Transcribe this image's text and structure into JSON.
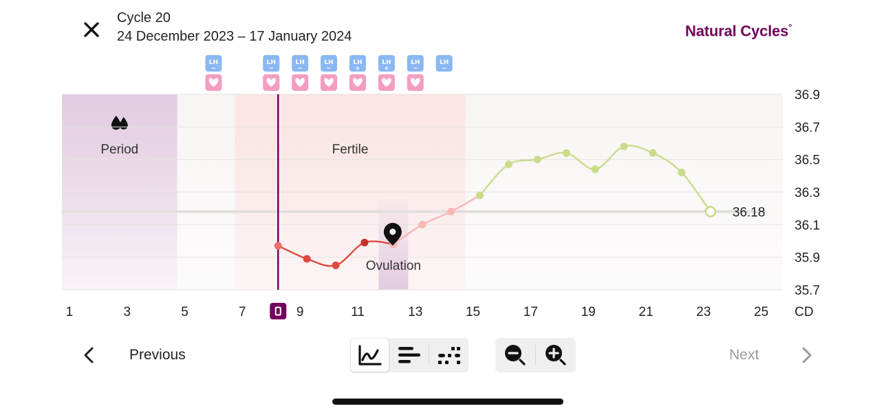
{
  "header": {
    "close_icon": "close-icon",
    "cycle_title": "Cycle 20",
    "date_range": "24 December 2023 – 17 January 2024",
    "brand": "Natural Cycles",
    "brand_mark": "°"
  },
  "toolbar": {
    "previous_label": "Previous",
    "next_label": "Next",
    "view_modes": [
      {
        "name": "graph-view",
        "icon": "line-graph-icon",
        "active": true
      },
      {
        "name": "list-view",
        "icon": "bars-icon",
        "active": false
      },
      {
        "name": "dots-view",
        "icon": "dots-icon",
        "active": false
      }
    ],
    "zoom": [
      {
        "name": "zoom-out",
        "icon": "zoom-out-icon"
      },
      {
        "name": "zoom-in",
        "icon": "zoom-in-icon"
      }
    ]
  },
  "colors": {
    "brand": "#72035d",
    "period_band": "#e2cbe0",
    "fertile_band": "#fbe4e4",
    "red_line": "#e04840",
    "pink_line": "#f7b7b5",
    "green_line": "#c9dc8a",
    "lh_badge": "#8ab8f3",
    "heart_badge": "#f59cc1"
  },
  "chart_data": {
    "type": "line",
    "x_label_suffix": "CD",
    "x_range": [
      1,
      25
    ],
    "x_ticks": [
      1,
      3,
      5,
      7,
      9,
      11,
      13,
      15,
      17,
      19,
      21,
      23,
      25
    ],
    "today_day": 8,
    "y_range": [
      35.7,
      36.9
    ],
    "y_ticks": [
      "36.9",
      "36.7",
      "36.5",
      "36.3",
      "36.1",
      "35.9",
      "35.7"
    ],
    "coverline": 36.18,
    "coverline_label": "36.18",
    "bands": [
      {
        "label": "Period",
        "from": 1,
        "to": 4,
        "icon": "droplets-icon"
      },
      {
        "label": "Fertile",
        "from": 7,
        "to": 14
      }
    ],
    "ovulation": {
      "day": 12,
      "label": "Ovulation"
    },
    "series": [
      {
        "x": [
          8,
          9,
          10,
          11,
          12
        ],
        "y": [
          35.97,
          35.89,
          35.85,
          35.99,
          35.98
        ],
        "color": "#e04840"
      },
      {
        "x": [
          12,
          13,
          14,
          15
        ],
        "y": [
          35.98,
          36.1,
          36.18,
          36.28
        ],
        "color": "#f7b7b5"
      },
      {
        "x": [
          15,
          16,
          17,
          18,
          19,
          20,
          21,
          22,
          23
        ],
        "y": [
          36.28,
          36.47,
          36.5,
          36.54,
          36.44,
          36.58,
          36.54,
          36.42,
          36.18
        ],
        "color": "#c9dc8a"
      }
    ],
    "open_point_day": 23,
    "lh_tests": [
      {
        "day": 6,
        "label": "LH",
        "sign": "−"
      },
      {
        "day": 8,
        "label": "LH",
        "sign": "−"
      },
      {
        "day": 9,
        "label": "LH",
        "sign": "−"
      },
      {
        "day": 10,
        "label": "LH",
        "sign": "−"
      },
      {
        "day": 11,
        "label": "LH",
        "sign": "+"
      },
      {
        "day": 12,
        "label": "LH",
        "sign": "+"
      },
      {
        "day": 13,
        "label": "LH",
        "sign": "−"
      },
      {
        "day": 14,
        "label": "LH",
        "sign": "−"
      }
    ],
    "heart_days": [
      6,
      8,
      9,
      10,
      11,
      12,
      13
    ]
  }
}
